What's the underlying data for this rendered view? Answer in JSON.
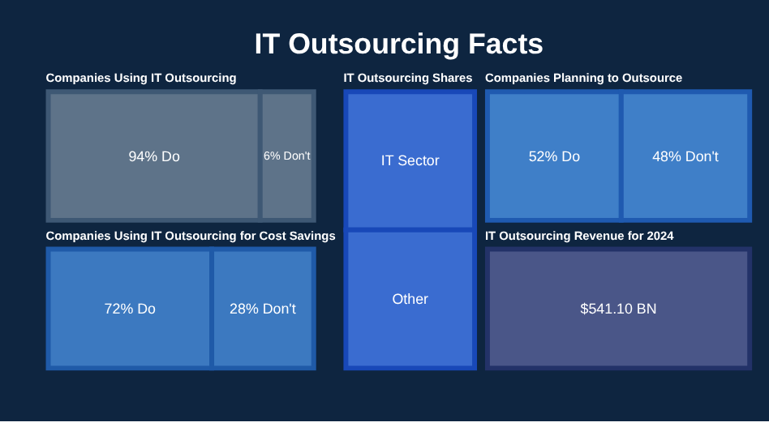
{
  "chart_data": [
    {
      "type": "other",
      "title": "IT Outsourcing Facts"
    },
    {
      "type": "other",
      "title": "Companies Using IT Outsourcing",
      "values": [
        94,
        6
      ],
      "value_labels": [
        "94% Do",
        "6% Don't"
      ],
      "colors": [
        "#5e7389",
        "#5e7389"
      ]
    },
    {
      "type": "other",
      "title": "IT Outsourcing Shares",
      "categories": [
        "IT Sector",
        "Other"
      ],
      "colors": [
        "#3a6cd0",
        "#3a6cd0"
      ]
    },
    {
      "type": "other",
      "title": "Companies Planning to Outsource",
      "values": [
        52,
        48
      ],
      "value_labels": [
        "52% Do",
        "48% Don't"
      ],
      "colors": [
        "#3f7fc8",
        "#3f7fc8"
      ]
    },
    {
      "type": "other",
      "title": "Companies Using IT Outsourcing for Cost Savings",
      "values": [
        72,
        28
      ],
      "value_labels": [
        "72% Do",
        "28% Don't"
      ],
      "colors": [
        "#3c79c0",
        "#3c79c0"
      ]
    },
    {
      "type": "other",
      "title": "IT Outsourcing Revenue for 2024",
      "values": [
        541.1
      ],
      "value_labels": [
        "$541.10 BN"
      ],
      "colors": [
        "#4a5688"
      ]
    }
  ]
}
